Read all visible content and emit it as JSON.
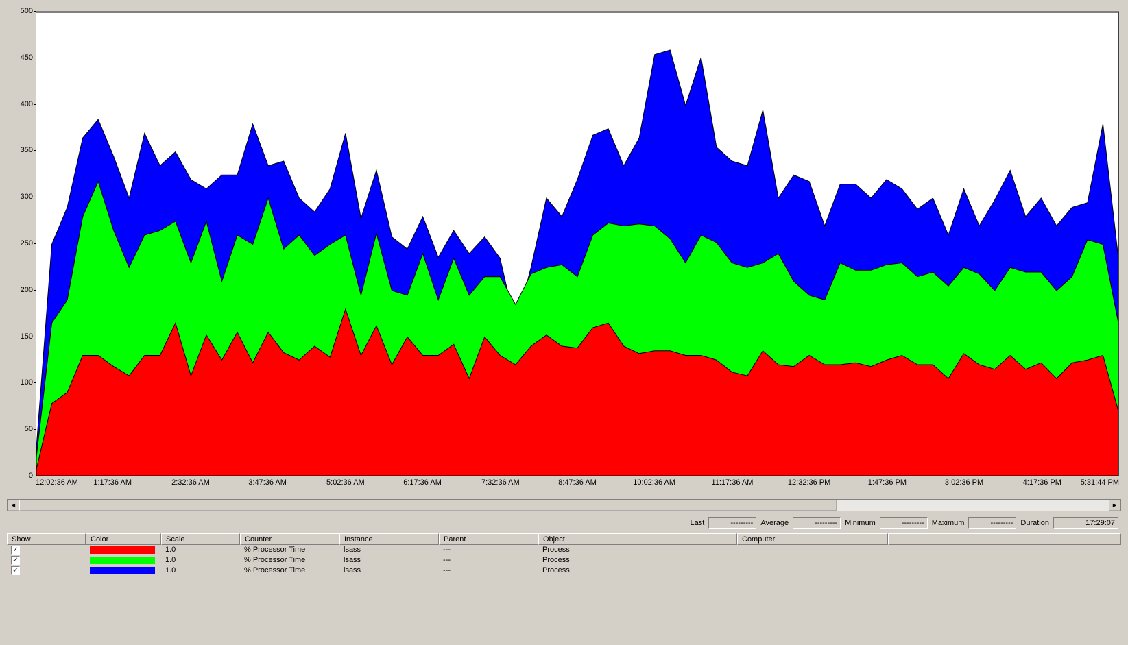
{
  "chart": {
    "type": "area-stacked",
    "background_color": "#ffffff",
    "panel_background": "#d4d0c8",
    "border_color": "#404040",
    "ylim": [
      0,
      500
    ],
    "ytick_step": 50,
    "yticks": [
      0,
      50,
      100,
      150,
      200,
      250,
      300,
      350,
      400,
      450,
      500
    ],
    "xticks": [
      {
        "pos": 0.0,
        "label": "12:02:36 AM",
        "edge": "first"
      },
      {
        "pos": 0.071,
        "label": "1:17:36 AM"
      },
      {
        "pos": 0.143,
        "label": "2:32:36 AM"
      },
      {
        "pos": 0.214,
        "label": "3:47:36 AM"
      },
      {
        "pos": 0.286,
        "label": "5:02:36 AM"
      },
      {
        "pos": 0.357,
        "label": "6:17:36 AM"
      },
      {
        "pos": 0.429,
        "label": "7:32:36 AM"
      },
      {
        "pos": 0.5,
        "label": "8:47:36 AM"
      },
      {
        "pos": 0.571,
        "label": "10:02:36 AM"
      },
      {
        "pos": 0.643,
        "label": "11:17:36 AM"
      },
      {
        "pos": 0.714,
        "label": "12:32:36 PM"
      },
      {
        "pos": 0.786,
        "label": "1:47:36 PM"
      },
      {
        "pos": 0.857,
        "label": "3:02:36 PM"
      },
      {
        "pos": 0.929,
        "label": "4:17:36 PM"
      },
      {
        "pos": 1.0,
        "label": "5:31:44 PM",
        "edge": "last"
      }
    ],
    "n_points": 71,
    "series": [
      {
        "name": "red",
        "color": "#ff0000",
        "stroke": "#000000",
        "stroke_width": 1,
        "values": [
          7,
          78,
          90,
          130,
          130,
          118,
          108,
          130,
          130,
          165,
          108,
          152,
          125,
          155,
          122,
          155,
          133,
          125,
          140,
          128,
          180,
          130,
          162,
          120,
          150,
          130,
          130,
          142,
          105,
          150,
          130,
          120,
          140,
          152,
          140,
          138,
          160,
          165,
          140,
          132,
          135,
          135,
          130,
          130,
          125,
          112,
          108,
          135,
          120,
          118,
          130,
          120,
          120,
          122,
          118,
          125,
          130,
          120,
          120,
          105,
          132,
          120,
          115,
          130,
          115,
          122,
          105,
          122,
          125,
          130,
          70
        ]
      },
      {
        "name": "green",
        "color": "#00ff00",
        "stroke": "#000000",
        "stroke_width": 1,
        "values": [
          20,
          165,
          190,
          280,
          318,
          265,
          225,
          260,
          265,
          275,
          230,
          275,
          210,
          260,
          250,
          300,
          245,
          260,
          238,
          250,
          260,
          195,
          262,
          200,
          195,
          240,
          190,
          235,
          195,
          215,
          215,
          185,
          218,
          225,
          228,
          215,
          260,
          273,
          270,
          272,
          270,
          256,
          230,
          260,
          252,
          230,
          225,
          230,
          240,
          210,
          195,
          190,
          230,
          222,
          222,
          228,
          230,
          215,
          220,
          205,
          225,
          218,
          200,
          225,
          220,
          220,
          200,
          215,
          255,
          250,
          165
        ]
      },
      {
        "name": "blue",
        "color": "#0000ff",
        "stroke": "#000000",
        "stroke_width": 1,
        "values": [
          30,
          250,
          290,
          365,
          385,
          345,
          300,
          370,
          335,
          350,
          320,
          310,
          325,
          325,
          380,
          335,
          340,
          300,
          285,
          310,
          370,
          278,
          330,
          258,
          245,
          280,
          236,
          265,
          240,
          258,
          235,
          162,
          225,
          300,
          280,
          320,
          368,
          375,
          335,
          365,
          455,
          460,
          400,
          452,
          355,
          340,
          335,
          395,
          300,
          325,
          318,
          270,
          315,
          315,
          300,
          320,
          310,
          288,
          300,
          260,
          310,
          270,
          298,
          330,
          280,
          300,
          270,
          290,
          295,
          380,
          235
        ]
      }
    ]
  },
  "scrollbar": {
    "thumb_left_pct": 0,
    "thumb_width_pct": 75
  },
  "stats": {
    "last": {
      "label": "Last",
      "value": "---------"
    },
    "average": {
      "label": "Average",
      "value": "---------"
    },
    "minimum": {
      "label": "Minimum",
      "value": "---------"
    },
    "maximum": {
      "label": "Maximum",
      "value": "---------"
    },
    "duration": {
      "label": "Duration",
      "value": "17:29:07"
    }
  },
  "table": {
    "headers": [
      "Show",
      "Color",
      "Scale",
      "Counter",
      "Instance",
      "Parent",
      "Object",
      "Computer",
      ""
    ],
    "rows": [
      {
        "checked": true,
        "color": "#ff0000",
        "scale": "1.0",
        "counter": "% Processor Time",
        "instance": "lsass",
        "parent": "---",
        "object": "Process",
        "computer": ""
      },
      {
        "checked": true,
        "color": "#00ff00",
        "scale": "1.0",
        "counter": "% Processor Time",
        "instance": "lsass",
        "parent": "---",
        "object": "Process",
        "computer": ""
      },
      {
        "checked": true,
        "color": "#0000ff",
        "scale": "1.0",
        "counter": "% Processor Time",
        "instance": "lsass",
        "parent": "---",
        "object": "Process",
        "computer": ""
      }
    ]
  }
}
